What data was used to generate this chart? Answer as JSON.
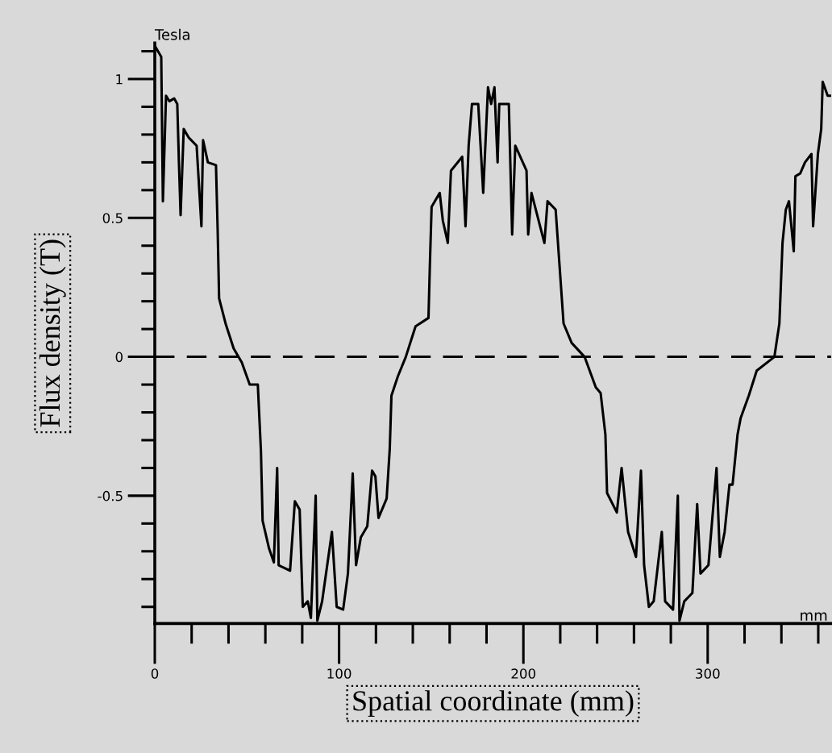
{
  "chart_data": {
    "type": "line",
    "xlabel": "Spatial coordinate (mm)",
    "ylabel": "Flux density (T)",
    "annotations": [
      "Tesla",
      "mm"
    ],
    "xlim": [
      0,
      367
    ],
    "ylim": [
      -0.96,
      1.13
    ],
    "xticks": [
      0,
      {
        "value": 20,
        "label": null
      },
      {
        "value": 40,
        "label": null
      },
      {
        "value": 60,
        "label": null
      },
      {
        "value": 80,
        "label": null
      },
      100,
      {
        "value": 120,
        "label": null
      },
      {
        "value": 140,
        "label": null
      },
      {
        "value": 160,
        "label": null
      },
      {
        "value": 180,
        "label": null
      },
      200,
      {
        "value": 220,
        "label": null
      },
      {
        "value": 240,
        "label": null
      },
      {
        "value": 260,
        "label": null
      },
      {
        "value": 280,
        "label": null
      },
      300,
      {
        "value": 320,
        "label": null
      },
      {
        "value": 340,
        "label": null
      },
      {
        "value": 360,
        "label": null
      }
    ],
    "yticks": [
      {
        "value": -0.9,
        "label": null
      },
      {
        "value": -0.8,
        "label": null
      },
      {
        "value": -0.7,
        "label": null
      },
      {
        "value": -0.6,
        "label": null
      },
      {
        "value": -0.5,
        "label": "-0.5"
      },
      {
        "value": -0.4,
        "label": null
      },
      {
        "value": -0.3,
        "label": null
      },
      {
        "value": -0.2,
        "label": null
      },
      {
        "value": -0.1,
        "label": null
      },
      0,
      {
        "value": 0.1,
        "label": null
      },
      {
        "value": 0.2,
        "label": null
      },
      {
        "value": 0.3,
        "label": null
      },
      {
        "value": 0.4,
        "label": null
      },
      0.5,
      {
        "value": 0.6,
        "label": null
      },
      {
        "value": 0.7,
        "label": null
      },
      {
        "value": 0.8,
        "label": null
      },
      {
        "value": 0.9,
        "label": null
      },
      1,
      {
        "value": 1.1,
        "label": null
      }
    ],
    "ref_lines": [
      {
        "axis": "y",
        "value": 0,
        "line_style": "dashed",
        "color": "#000000"
      }
    ],
    "grid": false,
    "legend": false,
    "marker": "none",
    "line_style": "solid",
    "series": [
      {
        "color": "#000000",
        "x": [
          0,
          3.5,
          4.4,
          6.1,
          7.9,
          10.5,
          12.2,
          13.1,
          14,
          15.7,
          18.3,
          22.7,
          23.6,
          25.3,
          26.2,
          28.8,
          33.2,
          34.1,
          34.9,
          38.4,
          42.8,
          47.2,
          51.5,
          55.9,
          57.6,
          58.5,
          62,
          64.6,
          66.4,
          67.2,
          73.4,
          76,
          78.6,
          80.3,
          83,
          84.7,
          87.3,
          88.2,
          90.8,
          96.1,
          98.7,
          102.2,
          104.8,
          107.4,
          109.2,
          111.8,
          115.3,
          117.9,
          119.7,
          121.4,
          125.8,
          127.5,
          128.4,
          131.9,
          136.2,
          141.5,
          148.5,
          149.3,
          150.2,
          154.6,
          156.3,
          159,
          160.7,
          166.8,
          168.6,
          170.3,
          172.1,
          175.5,
          178.2,
          180.8,
          182.5,
          184.3,
          186,
          186.9,
          192.1,
          193.9,
          195.6,
          201.7,
          202.6,
          204.4,
          211.4,
          213.1,
          217.5,
          221.8,
          226.2,
          233.2,
          239.3,
          241.9,
          244.5,
          245.4,
          250.7,
          253.3,
          256.8,
          261.1,
          263.8,
          265.5,
          268.1,
          270.7,
          275.1,
          276.9,
          281.2,
          283.8,
          284.7,
          287.3,
          291.7,
          294.3,
          296.1,
          300.4,
          304.8,
          306.6,
          309.2,
          311.8,
          313.5,
          316.2,
          317.9,
          322.3,
          326.6,
          336.2,
          338.9,
          340.6,
          342.4,
          344.1,
          346.7,
          347.6,
          350.2,
          352.8,
          356.3,
          357.2,
          359.8,
          361.6,
          362.4,
          365.1,
          366.8
        ],
        "values": [
          1.12,
          1.08,
          0.56,
          0.94,
          0.92,
          0.93,
          0.91,
          0.7,
          0.51,
          0.82,
          0.79,
          0.76,
          0.66,
          0.47,
          0.78,
          0.7,
          0.69,
          0.46,
          0.21,
          0.12,
          0.03,
          -0.02,
          -0.1,
          -0.1,
          -0.34,
          -0.59,
          -0.69,
          -0.74,
          -0.4,
          -0.75,
          -0.77,
          -0.52,
          -0.55,
          -0.9,
          -0.88,
          -0.94,
          -0.5,
          -0.95,
          -0.88,
          -0.63,
          -0.9,
          -0.91,
          -0.78,
          -0.42,
          -0.75,
          -0.65,
          -0.61,
          -0.41,
          -0.43,
          -0.58,
          -0.51,
          -0.33,
          -0.14,
          -0.07,
          0,
          0.11,
          0.14,
          0.34,
          0.54,
          0.59,
          0.49,
          0.41,
          0.67,
          0.72,
          0.47,
          0.76,
          0.91,
          0.91,
          0.59,
          0.97,
          0.91,
          0.97,
          0.7,
          0.91,
          0.91,
          0.44,
          0.76,
          0.67,
          0.44,
          0.59,
          0.41,
          0.56,
          0.53,
          0.12,
          0.05,
          0,
          -0.11,
          -0.13,
          -0.28,
          -0.49,
          -0.56,
          -0.4,
          -0.63,
          -0.72,
          -0.41,
          -0.75,
          -0.9,
          -0.88,
          -0.63,
          -0.88,
          -0.91,
          -0.5,
          -0.95,
          -0.88,
          -0.85,
          -0.53,
          -0.78,
          -0.75,
          -0.4,
          -0.72,
          -0.63,
          -0.46,
          -0.46,
          -0.28,
          -0.22,
          -0.14,
          -0.05,
          0,
          0.12,
          0.41,
          0.53,
          0.56,
          0.38,
          0.65,
          0.66,
          0.7,
          0.73,
          0.47,
          0.73,
          0.82,
          0.99,
          0.94,
          0.94
        ]
      }
    ]
  }
}
